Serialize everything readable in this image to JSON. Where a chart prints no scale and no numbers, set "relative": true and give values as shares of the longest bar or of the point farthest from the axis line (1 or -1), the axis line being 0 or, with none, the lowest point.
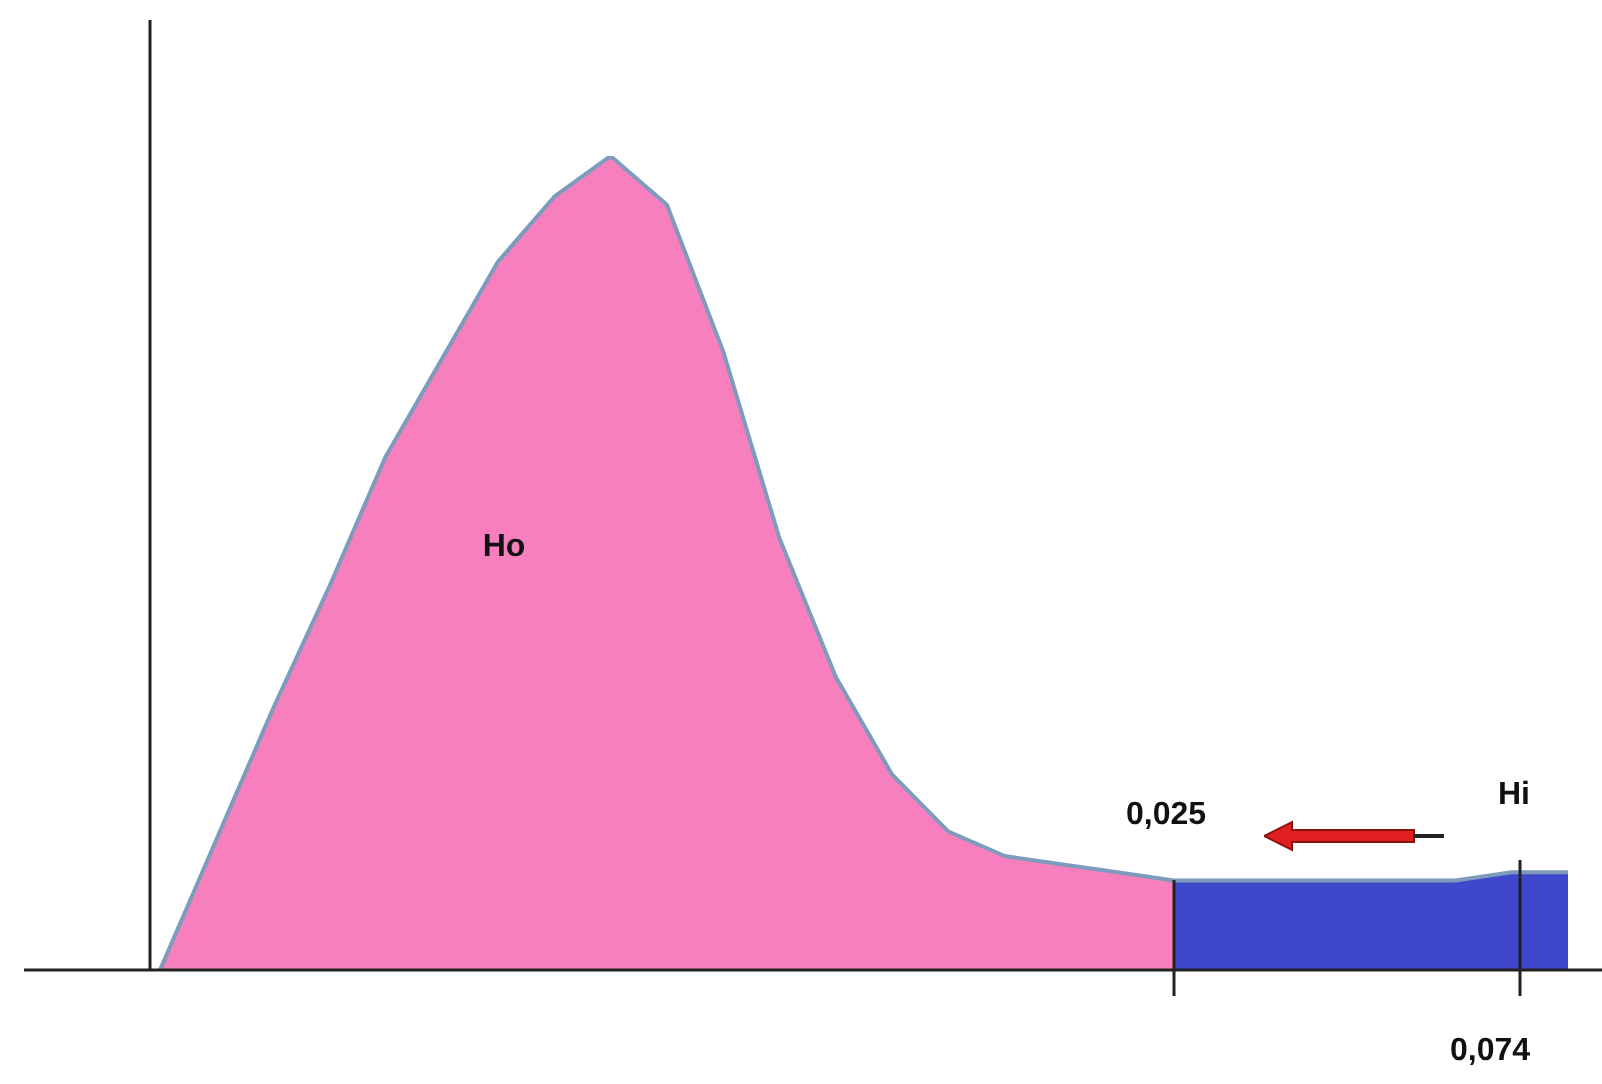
{
  "chart_data": {
    "type": "area",
    "relative": true,
    "categories": [
      null,
      null,
      null,
      null,
      null,
      null,
      null,
      null,
      null,
      null,
      null,
      null,
      null,
      null,
      null,
      null,
      null,
      null,
      null,
      null,
      null,
      null,
      null,
      null,
      null,
      null
    ],
    "series": [
      {
        "color": "#f77fbe",
        "values": [
          0,
          0.16,
          0.32,
          0.47,
          0.63,
          0.75,
          0.87,
          0.95,
          1,
          0.94,
          0.76,
          0.53,
          0.36,
          0.24,
          0.17,
          0.14,
          0.13,
          0.12,
          0.11,
          null,
          null,
          null,
          null,
          null,
          null,
          null
        ]
      },
      {
        "color": "#3f48cc",
        "values": [
          null,
          null,
          null,
          null,
          null,
          null,
          null,
          null,
          null,
          null,
          null,
          null,
          null,
          null,
          null,
          null,
          null,
          null,
          0.11,
          0.11,
          0.11,
          0.11,
          0.11,
          0.11,
          0.12,
          0.12
        ]
      }
    ],
    "annotations": [
      "Ho",
      "0,025",
      "Hi",
      "0,074"
    ]
  }
}
